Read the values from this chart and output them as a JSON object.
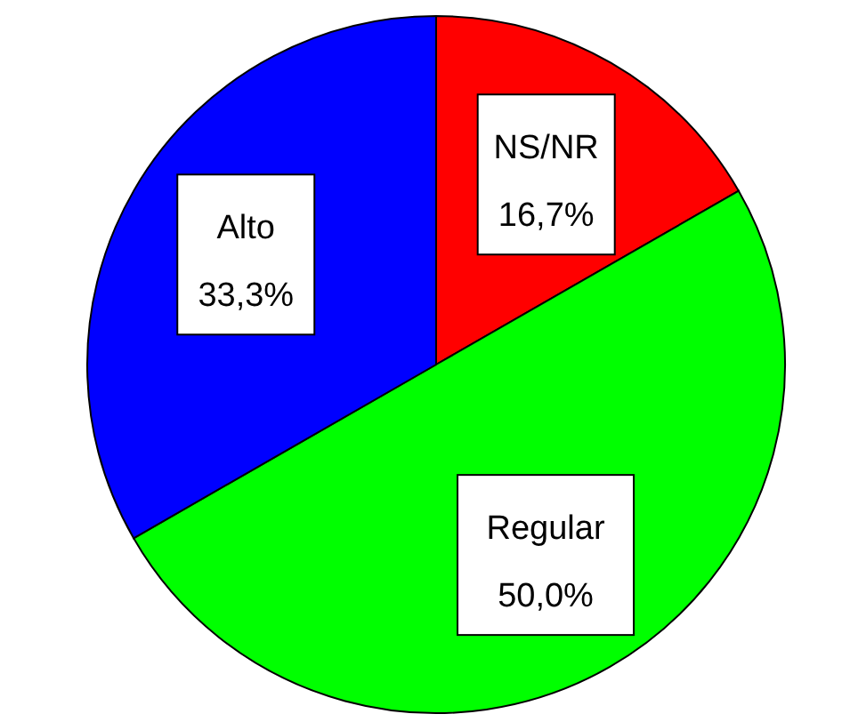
{
  "chart_data": {
    "type": "pie",
    "categories": [
      "NS/NR",
      "Regular",
      "Alto"
    ],
    "values": [
      16.7,
      50.0,
      33.3
    ],
    "colors": [
      "#ff0000",
      "#00ff00",
      "#0000ff"
    ],
    "value_labels": [
      "16,7%",
      "50,0%",
      "33,3%"
    ],
    "legend": false
  }
}
